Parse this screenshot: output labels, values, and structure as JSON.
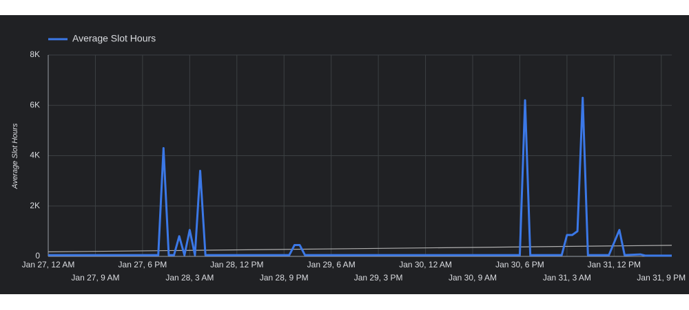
{
  "chart_data": {
    "type": "line",
    "y_axis_label": "Average Slot Hours",
    "series": [
      {
        "name": "Average Slot Hours",
        "color": "#3b78e7",
        "x": [
          "Jan 27, 12 AM",
          "Jan 27, 9 PM",
          "Jan 27, 10 PM",
          "Jan 27, 11 PM",
          "Jan 28, 12 AM",
          "Jan 28, 1 AM",
          "Jan 28, 2 AM",
          "Jan 28, 3 AM",
          "Jan 28, 4 AM",
          "Jan 28, 5 AM",
          "Jan 28, 6 AM",
          "Jan 28, 10 PM",
          "Jan 28, 11 PM",
          "Jan 29, 12 AM",
          "Jan 29, 1 AM",
          "Jan 30, 6 PM",
          "Jan 30, 7 PM",
          "Jan 30, 8 PM",
          "Jan 31, 2 AM",
          "Jan 31, 3 AM",
          "Jan 31, 4 AM",
          "Jan 31, 5 AM",
          "Jan 31, 6 AM",
          "Jan 31, 7 AM",
          "Jan 31, 11 AM",
          "Jan 31, 1 PM",
          "Jan 31, 2 PM",
          "Jan 31, 5 PM",
          "Jan 31, 6 PM",
          "Jan 31, 11 PM"
        ],
        "values": [
          50,
          50,
          4300,
          50,
          50,
          800,
          50,
          1050,
          50,
          3400,
          50,
          50,
          450,
          450,
          50,
          50,
          6200,
          50,
          50,
          850,
          850,
          1000,
          6300,
          50,
          50,
          1050,
          50,
          80,
          30,
          30
        ]
      }
    ],
    "trend": {
      "color": "#b0b0b0",
      "x": [
        "Jan 27, 12 AM",
        "Jan 31, 11 PM"
      ],
      "values": [
        180,
        440
      ]
    },
    "xlim": [
      "Jan 27, 12 AM",
      "Jan 31, 11 PM"
    ],
    "xticks": [
      "Jan 27, 12 AM",
      "Jan 27, 9 AM",
      "Jan 27, 6 PM",
      "Jan 28, 3 AM",
      "Jan 28, 12 PM",
      "Jan 28, 9 PM",
      "Jan 29, 6 AM",
      "Jan 29, 3 PM",
      "Jan 30, 12 AM",
      "Jan 30, 9 AM",
      "Jan 30, 6 PM",
      "Jan 31, 3 AM",
      "Jan 31, 12 PM",
      "Jan 31, 9 PM"
    ],
    "ylim": [
      0,
      8000
    ],
    "yticks": [
      0,
      {
        "value": 2000,
        "label": "2K"
      },
      {
        "value": 4000,
        "label": "4K"
      },
      {
        "value": 6000,
        "label": "6K"
      },
      {
        "value": 8000,
        "label": "8K"
      }
    ],
    "grid": true,
    "legend": "top-left"
  }
}
